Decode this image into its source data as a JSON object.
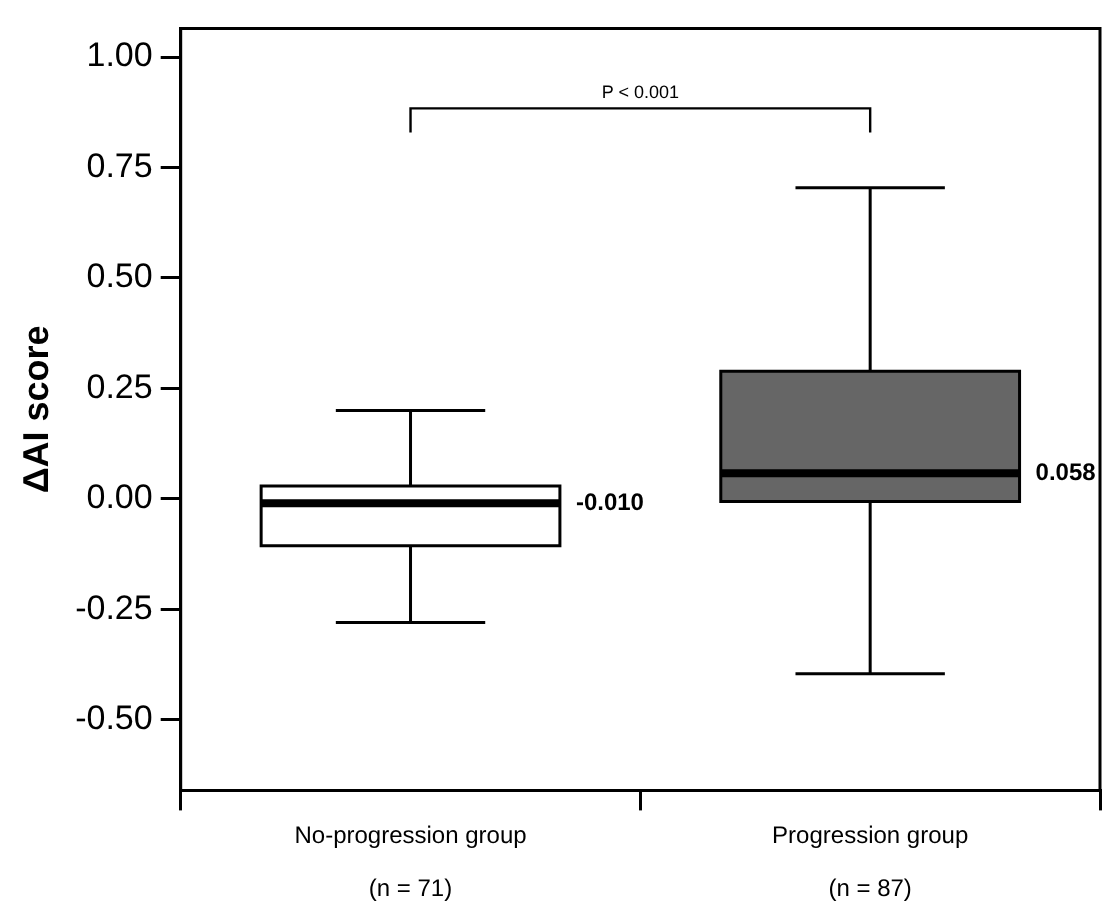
{
  "chart_data": {
    "type": "box",
    "ylabel": "ΔAI score",
    "categories": [
      "No-progression group\n(n = 71)",
      "Progression group\n(n = 87)"
    ],
    "boxes": [
      {
        "low": -0.28,
        "q1": -0.106,
        "median": -0.01,
        "q3": 0.029,
        "high": 0.2
      },
      {
        "low": -0.396,
        "q1": -0.006,
        "median": 0.058,
        "q3": 0.289,
        "high": 0.704
      }
    ],
    "colors": [
      "#ffffff",
      "#666666"
    ],
    "value_labels": [
      "-0.010",
      "0.058"
    ],
    "annotations": [
      "P < 0.001"
    ],
    "ylim": [
      -0.66,
      1.065
    ],
    "yticks": [
      {
        "value": -0.5,
        "label": "-0.50"
      },
      {
        "value": -0.25,
        "label": "-0.25"
      },
      {
        "value": 0,
        "label": "0.00"
      },
      {
        "value": 0.25,
        "label": "0.25"
      },
      {
        "value": 0.5,
        "label": "0.50"
      },
      {
        "value": 0.75,
        "label": "0.75"
      },
      {
        "value": 1,
        "label": "1.00"
      }
    ]
  }
}
